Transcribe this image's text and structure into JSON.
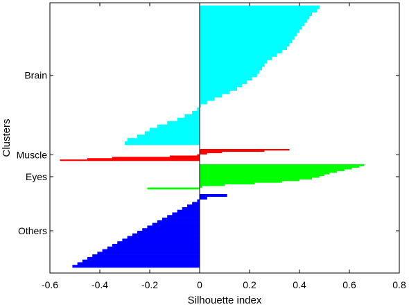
{
  "chart_data": {
    "type": "bar",
    "orientation": "horizontal",
    "title": "",
    "xlabel": "Silhouette index",
    "ylabel": "Clusters",
    "xlim": [
      -0.6,
      0.8
    ],
    "x_ticks": [
      -0.6,
      -0.4,
      -0.2,
      0,
      0.2,
      0.4,
      0.6,
      0.8
    ],
    "x_tick_labels": [
      "-0.6",
      "-0.4",
      "-0.2",
      "0",
      "0.2",
      "0.4",
      "0.6",
      "0.8"
    ],
    "grid": false,
    "series": [
      {
        "name": "Brain",
        "color": "#00ffff",
        "values": [
          0.48,
          0.47,
          0.45,
          0.44,
          0.43,
          0.42,
          0.41,
          0.4,
          0.39,
          0.38,
          0.37,
          0.36,
          0.35,
          0.33,
          0.31,
          0.29,
          0.27,
          0.26,
          0.25,
          0.24,
          0.23,
          0.21,
          0.19,
          0.17,
          0.15,
          0.12,
          0.09,
          0.06,
          0.03,
          0.005,
          -0.01,
          -0.03,
          -0.06,
          -0.09,
          -0.13,
          -0.17,
          -0.2,
          -0.22,
          -0.25,
          -0.29,
          -0.3
        ]
      },
      {
        "name": "Muscle",
        "color": "#ff0000",
        "values": [
          0.36,
          0.26,
          0.09,
          0.03,
          -0.01,
          -0.12,
          -0.35,
          -0.45,
          -0.56
        ]
      },
      {
        "name": "Eyes",
        "color": "#00ff00",
        "values": [
          0.66,
          0.64,
          0.61,
          0.58,
          0.55,
          0.52,
          0.5,
          0.48,
          0.45,
          0.4,
          0.33,
          0.22,
          0.1,
          0.01,
          -0.21
        ]
      },
      {
        "name": "Others",
        "color": "#0000ff",
        "values": [
          0.11,
          0.03,
          -0.01,
          -0.03,
          -0.05,
          -0.07,
          -0.09,
          -0.11,
          -0.13,
          -0.15,
          -0.17,
          -0.19,
          -0.21,
          -0.23,
          -0.25,
          -0.27,
          -0.29,
          -0.31,
          -0.33,
          -0.35,
          -0.37,
          -0.39,
          -0.41,
          -0.43,
          -0.45,
          -0.47,
          -0.49,
          -0.51
        ]
      }
    ]
  }
}
